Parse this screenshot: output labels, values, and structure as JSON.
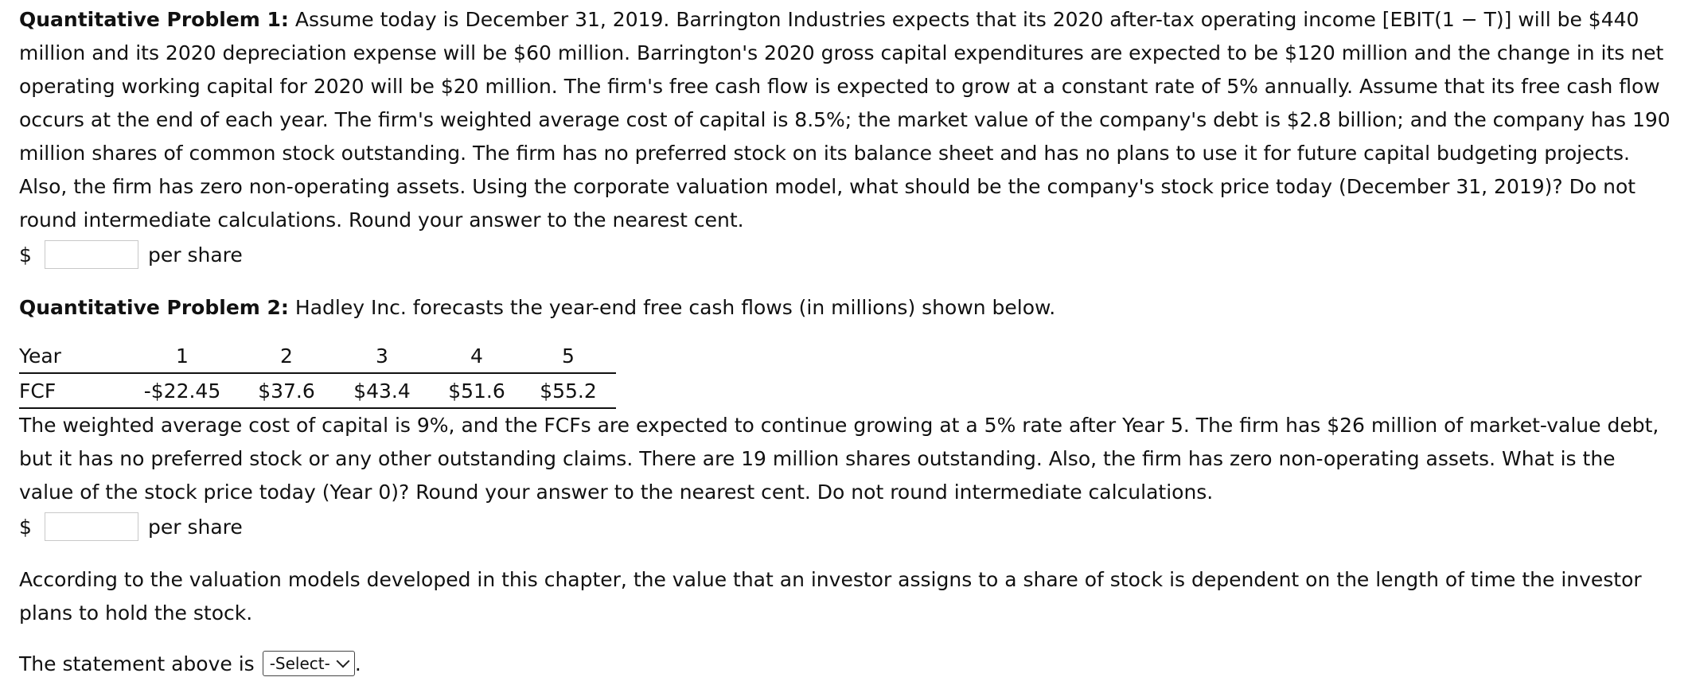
{
  "problem1": {
    "heading": "Quantitative Problem 1:",
    "text": "Assume today is December 31, 2019. Barrington Industries expects that its 2020 after-tax operating income [EBIT(1 − T)] will be $440 million and its 2020 depreciation expense will be $60 million. Barrington's 2020 gross capital expenditures are expected to be $120 million and the change in its net operating working capital for 2020 will be $20 million. The firm's free cash flow is expected to grow at a constant rate of 5% annually. Assume that its free cash flow occurs at the end of each year. The firm's weighted average cost of capital is 8.5%; the market value of the company's debt is $2.8 billion; and the company has 190 million shares of common stock outstanding. The firm has no preferred stock on its balance sheet and has no plans to use it for future capital budgeting projects. Also, the firm has zero non-operating assets. Using the corporate valuation model, what should be the company's stock price today (December 31, 2019)? Do not round intermediate calculations. Round your answer to the nearest cent.",
    "currency": "$",
    "answer_value": "",
    "unit": "per share"
  },
  "problem2": {
    "heading": "Quantitative Problem 2:",
    "intro": "Hadley Inc. forecasts the year-end free cash flows (in millions) shown below.",
    "table": {
      "row_labels": [
        "Year",
        "FCF"
      ],
      "years": [
        "1",
        "2",
        "3",
        "4",
        "5"
      ],
      "fcf": [
        "-$22.45",
        "$37.6",
        "$43.4",
        "$51.6",
        "$55.2"
      ]
    },
    "text": "The weighted average cost of capital is 9%, and the FCFs are expected to continue growing at a 5% rate after Year 5. The firm has $26 million of market-value debt, but it has no preferred stock or any other outstanding claims. There are 19 million shares outstanding. Also, the firm has zero non-operating assets. What is the value of the stock price today (Year 0)? Round your answer to the nearest cent. Do not round intermediate calculations.",
    "currency": "$",
    "answer_value": "",
    "unit": "per share"
  },
  "statement": {
    "text": "According to the valuation models developed in this chapter, the value that an investor assigns to a share of stock is dependent on the length of time the investor plans to hold the stock.",
    "prompt": "The statement above is",
    "select_value": "-Select-",
    "trailing": "."
  }
}
